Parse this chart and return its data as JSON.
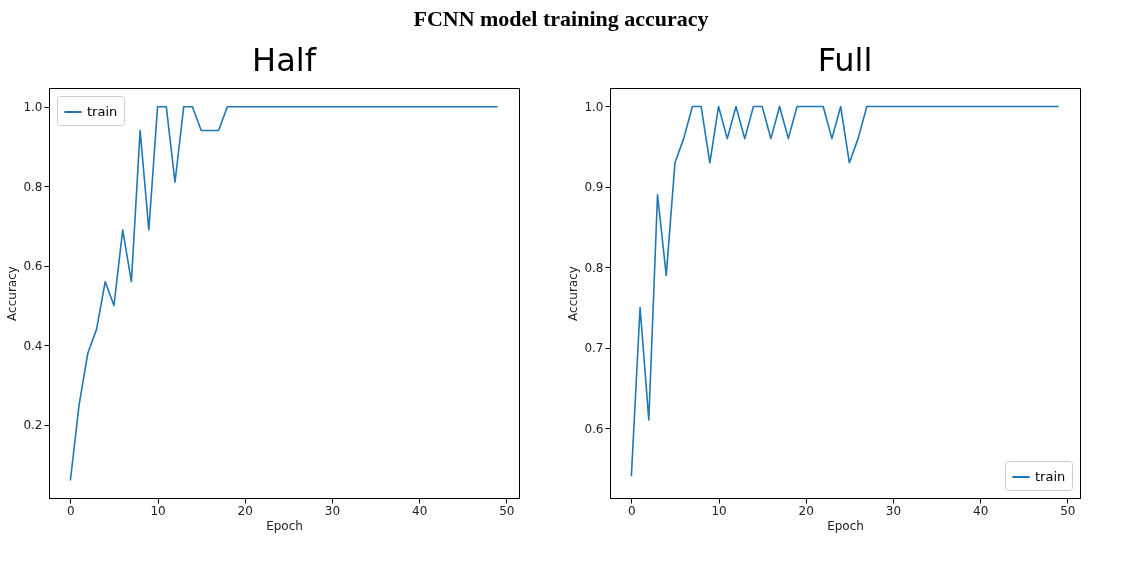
{
  "chart_data": [
    {
      "type": "other",
      "title": "FCNN model training accuracy"
    },
    {
      "type": "line",
      "title": "Half",
      "xlabel": "Epoch",
      "ylabel": "Accuracy",
      "x": [
        0,
        1,
        2,
        3,
        4,
        5,
        6,
        7,
        8,
        9,
        10,
        11,
        12,
        13,
        14,
        15,
        16,
        17,
        18,
        19,
        20,
        21,
        22,
        23,
        24,
        25,
        26,
        27,
        28,
        29,
        30,
        31,
        32,
        33,
        34,
        35,
        36,
        37,
        38,
        39,
        40,
        41,
        42,
        43,
        44,
        45,
        46,
        47,
        48,
        49
      ],
      "series": [
        {
          "name": "train",
          "color": "#1f77b4",
          "values": [
            0.06,
            0.25,
            0.38,
            0.44,
            0.56,
            0.5,
            0.69,
            0.56,
            0.94,
            0.69,
            1,
            1,
            0.81,
            1,
            1,
            0.94,
            0.94,
            0.94,
            1,
            1,
            1,
            1,
            1,
            1,
            1,
            1,
            1,
            1,
            1,
            1,
            1,
            1,
            1,
            1,
            1,
            1,
            1,
            1,
            1,
            1,
            1,
            1,
            1,
            1,
            1,
            1,
            1,
            1,
            1,
            1
          ]
        }
      ],
      "xlim": [
        -2.45,
        51.45
      ],
      "xticks": [
        0,
        10,
        20,
        30,
        40,
        50
      ],
      "ylim": [
        0.016,
        1.047
      ],
      "yticks": [
        0.2,
        0.4,
        0.6,
        0.8,
        {
          "value": 1,
          "label": "1.0"
        }
      ],
      "legend": "top left",
      "grid": false
    },
    {
      "type": "line",
      "title": "Full",
      "xlabel": "Epoch",
      "ylabel": "Accuracy",
      "x": [
        0,
        1,
        2,
        3,
        4,
        5,
        6,
        7,
        8,
        9,
        10,
        11,
        12,
        13,
        14,
        15,
        16,
        17,
        18,
        19,
        20,
        21,
        22,
        23,
        24,
        25,
        26,
        27,
        28,
        29,
        30,
        31,
        32,
        33,
        34,
        35,
        36,
        37,
        38,
        39,
        40,
        41,
        42,
        43,
        44,
        45,
        46,
        47,
        48,
        49
      ],
      "series": [
        {
          "name": "train",
          "color": "#1f77b4",
          "values": [
            0.54,
            0.75,
            0.61,
            0.89,
            0.79,
            0.93,
            0.96,
            1,
            1,
            0.93,
            1,
            0.96,
            1,
            0.96,
            1,
            1,
            0.96,
            1,
            0.96,
            1,
            1,
            1,
            1,
            0.96,
            1,
            0.93,
            0.96,
            1,
            1,
            1,
            1,
            1,
            1,
            1,
            1,
            1,
            1,
            1,
            1,
            1,
            1,
            1,
            1,
            1,
            1,
            1,
            1,
            1,
            1,
            1
          ]
        }
      ],
      "xlim": [
        -2.45,
        51.45
      ],
      "xticks": [
        0,
        10,
        20,
        30,
        40,
        50
      ],
      "ylim": [
        0.513,
        1.023
      ],
      "yticks": [
        0.6,
        0.7,
        0.8,
        0.9,
        {
          "value": 1,
          "label": "1.0"
        }
      ],
      "legend": "bottom right",
      "grid": false
    }
  ]
}
